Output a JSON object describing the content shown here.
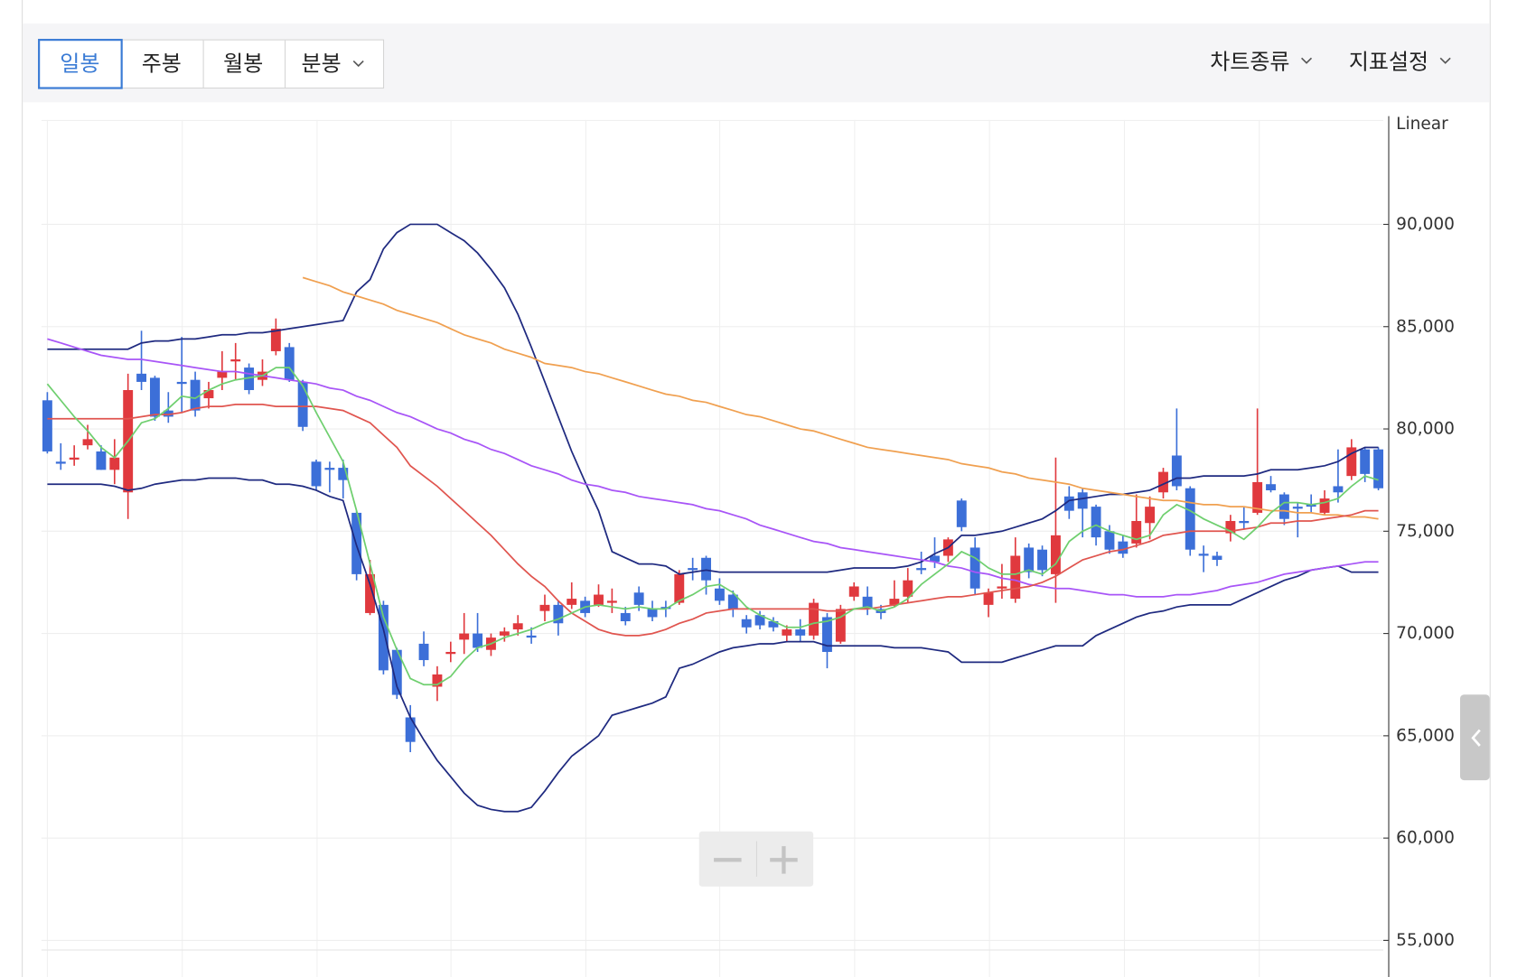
{
  "toolbar": {
    "tabs": [
      "일봉",
      "주봉",
      "월봉",
      "분봉"
    ],
    "menus": [
      "차트종류",
      "지표설정"
    ]
  },
  "chart_data": {
    "type": "candlestick",
    "y_axis_label": "Linear",
    "ylim": [
      54700,
      95100
    ],
    "yticks": [
      {
        "value": 55000,
        "label": "55,000"
      },
      {
        "value": 60000,
        "label": "60,000"
      },
      {
        "value": 65000,
        "label": "65,000"
      },
      {
        "value": 70000,
        "label": "70,000"
      },
      {
        "value": 75000,
        "label": "75,000"
      },
      {
        "value": 80000,
        "label": "80,000"
      },
      {
        "value": 85000,
        "label": "85,000"
      },
      {
        "value": 90000,
        "label": "90,000"
      }
    ],
    "grid": true,
    "up_color": "#e0393e",
    "down_color": "#3c6fd8",
    "open": [
      81400,
      78400,
      78500,
      79200,
      78900,
      78000,
      76900,
      82700,
      82500,
      80900,
      82300,
      82400,
      81500,
      82500,
      83300,
      83000,
      82400,
      83800,
      84000,
      82300,
      78400,
      78100,
      78100,
      75900,
      71000,
      71400,
      69200,
      65900,
      69500,
      67400,
      69000,
      69700,
      70000,
      69200,
      69900,
      70200,
      69900,
      71100,
      71400,
      71400,
      71600,
      71400,
      71500,
      71000,
      72000,
      71200,
      71300,
      71500,
      73200,
      73700,
      72200,
      71900,
      70700,
      70900,
      70600,
      69900,
      70200,
      69900,
      70800,
      69600,
      71800,
      71800,
      71200,
      71400,
      71800,
      73200,
      73800,
      73800,
      76500,
      74200,
      71400,
      72200,
      71700,
      74200,
      74100,
      72900,
      76700,
      76900,
      76200,
      75000,
      74500,
      74400,
      75400,
      76900,
      78700,
      77100,
      73900,
      73800,
      74900,
      75500,
      75900,
      77300,
      76800,
      76200,
      76300,
      75900,
      77200,
      77700,
      79000,
      79000
    ],
    "high": [
      81800,
      79300,
      79200,
      80200,
      79200,
      79500,
      82700,
      84800,
      82600,
      81800,
      84500,
      82800,
      82300,
      83800,
      84200,
      83200,
      83400,
      85400,
      84200,
      82400,
      78500,
      78400,
      78500,
      76000,
      73600,
      71600,
      69300,
      66500,
      70100,
      68400,
      69600,
      71000,
      71000,
      70000,
      70300,
      70900,
      70300,
      71900,
      71600,
      72500,
      71800,
      72400,
      72200,
      71300,
      72300,
      71600,
      71600,
      73100,
      73700,
      73800,
      72700,
      72100,
      70900,
      71100,
      70800,
      70400,
      70700,
      71700,
      71000,
      71400,
      72500,
      72300,
      71400,
      72600,
      73200,
      74000,
      74700,
      74700,
      76600,
      74700,
      72200,
      73400,
      74700,
      74400,
      74300,
      78600,
      77200,
      77100,
      76300,
      75300,
      74800,
      76800,
      76700,
      78100,
      81000,
      77200,
      74300,
      74000,
      75800,
      76200,
      81000,
      77700,
      76900,
      76400,
      76800,
      77000,
      79000,
      79500,
      79100,
      79100
    ],
    "low": [
      78800,
      78000,
      78200,
      79000,
      78000,
      77300,
      75600,
      81900,
      80400,
      80300,
      80800,
      80600,
      81000,
      81900,
      82400,
      81700,
      82100,
      83600,
      82300,
      79900,
      77000,
      76900,
      76600,
      72600,
      70900,
      68000,
      66800,
      64200,
      68400,
      66700,
      68600,
      69000,
      69100,
      68900,
      69600,
      69900,
      69500,
      70600,
      69900,
      71200,
      70800,
      71300,
      71000,
      70400,
      71100,
      70600,
      70800,
      71400,
      72600,
      71900,
      71400,
      70800,
      70000,
      70200,
      70100,
      69600,
      69600,
      69700,
      68300,
      69500,
      71600,
      70900,
      70700,
      71300,
      71500,
      72900,
      73200,
      73500,
      75000,
      71900,
      70800,
      71700,
      71500,
      72700,
      72800,
      71500,
      75600,
      74700,
      74300,
      73900,
      73700,
      74200,
      74600,
      76600,
      77000,
      73800,
      73000,
      73300,
      74500,
      75100,
      75800,
      76900,
      75300,
      74700,
      75900,
      75800,
      76400,
      77500,
      77400,
      77000
    ],
    "close": [
      78900,
      78300,
      78600,
      79500,
      78000,
      78600,
      81900,
      82300,
      80600,
      80600,
      82200,
      80900,
      81900,
      82800,
      83400,
      81900,
      82800,
      84900,
      82400,
      80100,
      77200,
      78000,
      77500,
      72900,
      72900,
      68200,
      67000,
      64700,
      68700,
      68000,
      69100,
      70000,
      69300,
      69800,
      70100,
      70500,
      69800,
      71400,
      70500,
      71700,
      71000,
      71900,
      71600,
      70600,
      71400,
      70800,
      71200,
      72900,
      73100,
      72600,
      71600,
      71200,
      70300,
      70400,
      70300,
      70200,
      69900,
      71500,
      69100,
      71200,
      72300,
      71200,
      71000,
      71700,
      72600,
      73100,
      73500,
      74600,
      75200,
      72200,
      72000,
      72300,
      73800,
      73000,
      73100,
      74800,
      76000,
      76100,
      74700,
      74100,
      73900,
      75500,
      76200,
      77900,
      77200,
      74100,
      73800,
      73600,
      75500,
      75400,
      77400,
      77000,
      75600,
      76100,
      76200,
      76600,
      76900,
      79100,
      77800,
      77100
    ],
    "lines": [
      {
        "color": "#1f2a80",
        "values": [
          83900,
          83900,
          83900,
          83900,
          83900,
          83900,
          83900,
          84200,
          84300,
          84300,
          84400,
          84400,
          84500,
          84600,
          84600,
          84700,
          84700,
          84800,
          84900,
          85000,
          85100,
          85200,
          85300,
          86700,
          87300,
          88800,
          89600,
          90000,
          90000,
          90000,
          89600,
          89200,
          88600,
          87800,
          86900,
          85600,
          84000,
          82300,
          80600,
          78900,
          77400,
          76000,
          74000,
          73700,
          73400,
          73400,
          73300,
          72900,
          73000,
          73100,
          73000,
          73000,
          73000,
          73000,
          73000,
          73000,
          73000,
          73000,
          73000,
          73100,
          73200,
          73200,
          73200,
          73200,
          73300,
          73500,
          73900,
          74200,
          74800,
          74800,
          74900,
          75000,
          75200,
          75400,
          75600,
          76000,
          76500,
          76600,
          76700,
          76800,
          76800,
          76900,
          77000,
          77300,
          77600,
          77600,
          77700,
          77700,
          77700,
          77700,
          77800,
          78000,
          78000,
          78000,
          78100,
          78200,
          78400,
          78800,
          79100,
          79100
        ]
      },
      {
        "color": "#1f2a80",
        "values": [
          77300,
          77300,
          77300,
          77300,
          77300,
          77200,
          77000,
          77100,
          77300,
          77400,
          77500,
          77500,
          77600,
          77600,
          77600,
          77500,
          77500,
          77300,
          77300,
          77200,
          77000,
          76700,
          76500,
          74300,
          72400,
          70200,
          67400,
          65900,
          64800,
          63800,
          63000,
          62200,
          61600,
          61400,
          61300,
          61300,
          61500,
          62300,
          63200,
          64000,
          64500,
          65000,
          66000,
          66200,
          66400,
          66600,
          66900,
          68300,
          68500,
          68800,
          69100,
          69300,
          69400,
          69500,
          69500,
          69600,
          69600,
          69600,
          69400,
          69400,
          69400,
          69400,
          69400,
          69300,
          69300,
          69300,
          69200,
          69100,
          68600,
          68600,
          68600,
          68600,
          68800,
          69000,
          69200,
          69400,
          69400,
          69400,
          69900,
          70200,
          70500,
          70800,
          71000,
          71100,
          71300,
          71400,
          71400,
          71400,
          71400,
          71700,
          72000,
          72300,
          72600,
          72800,
          73100,
          73200,
          73300,
          73000,
          73000,
          73000
        ]
      },
      {
        "color": "#f0a050",
        "values": [
          null,
          null,
          null,
          null,
          null,
          null,
          null,
          null,
          null,
          null,
          null,
          null,
          null,
          null,
          null,
          null,
          null,
          null,
          null,
          87400,
          87200,
          87000,
          86700,
          86500,
          86300,
          86100,
          85800,
          85600,
          85400,
          85200,
          84900,
          84600,
          84400,
          84200,
          83900,
          83700,
          83500,
          83200,
          83100,
          83000,
          82800,
          82700,
          82500,
          82300,
          82100,
          81900,
          81700,
          81600,
          81400,
          81300,
          81100,
          80900,
          80700,
          80600,
          80400,
          80200,
          80000,
          79900,
          79700,
          79500,
          79300,
          79100,
          79000,
          78900,
          78800,
          78700,
          78600,
          78500,
          78300,
          78200,
          78100,
          77900,
          77800,
          77600,
          77500,
          77400,
          77300,
          77100,
          77000,
          76900,
          76800,
          76700,
          76600,
          76500,
          76500,
          76400,
          76300,
          76300,
          76200,
          76200,
          76100,
          76000,
          76000,
          75900,
          75900,
          75800,
          75800,
          75700,
          75700,
          75600
        ]
      },
      {
        "color": "#a855f7",
        "values": [
          84400,
          84200,
          84000,
          83800,
          83600,
          83500,
          83400,
          83400,
          83300,
          83200,
          83100,
          83000,
          82900,
          82800,
          82800,
          82700,
          82600,
          82500,
          82400,
          82300,
          82200,
          82000,
          81900,
          81600,
          81400,
          81100,
          80800,
          80600,
          80300,
          80000,
          79800,
          79500,
          79300,
          79000,
          78800,
          78500,
          78200,
          78000,
          77800,
          77500,
          77300,
          77200,
          77000,
          76900,
          76700,
          76600,
          76500,
          76400,
          76300,
          76100,
          76000,
          75800,
          75600,
          75300,
          75100,
          74900,
          74700,
          74500,
          74400,
          74200,
          74100,
          74000,
          73900,
          73800,
          73700,
          73600,
          73500,
          73300,
          73200,
          73000,
          72900,
          72700,
          72600,
          72400,
          72300,
          72200,
          72200,
          72100,
          72000,
          71900,
          71900,
          71800,
          71800,
          71800,
          71900,
          71900,
          72000,
          72100,
          72300,
          72400,
          72500,
          72700,
          72900,
          73000,
          73100,
          73200,
          73300,
          73400,
          73500,
          73500
        ]
      },
      {
        "color": "#e0554f",
        "values": [
          80500,
          80500,
          80500,
          80500,
          80500,
          80500,
          80500,
          80600,
          80700,
          80700,
          80800,
          81000,
          81100,
          81100,
          81200,
          81200,
          81200,
          81100,
          81100,
          81100,
          81100,
          81000,
          80900,
          80600,
          80300,
          79700,
          79100,
          78200,
          77700,
          77200,
          76600,
          76000,
          75400,
          74800,
          74100,
          73400,
          72800,
          72300,
          71600,
          71000,
          70600,
          70200,
          70000,
          69900,
          69900,
          70000,
          70200,
          70500,
          70700,
          71000,
          71100,
          71200,
          71200,
          71200,
          71200,
          71200,
          71200,
          71200,
          71100,
          71100,
          71200,
          71200,
          71300,
          71400,
          71500,
          71600,
          71700,
          71800,
          71800,
          71900,
          72000,
          72100,
          72200,
          72300,
          72500,
          72800,
          73200,
          73600,
          73800,
          74000,
          74100,
          74300,
          74500,
          74800,
          74900,
          75000,
          75000,
          75000,
          75000,
          75100,
          75200,
          75400,
          75400,
          75500,
          75500,
          75600,
          75700,
          75800,
          76000,
          76000
        ]
      },
      {
        "color": "#6fcf6f",
        "values": [
          82200,
          81400,
          80600,
          79900,
          79100,
          78600,
          79400,
          80300,
          80500,
          81000,
          81600,
          81500,
          81900,
          82200,
          82400,
          82500,
          82600,
          83000,
          83000,
          82100,
          80800,
          79600,
          78400,
          76000,
          73400,
          70800,
          69200,
          67800,
          67500,
          67500,
          67900,
          68700,
          69300,
          69500,
          69800,
          70000,
          70200,
          70500,
          70700,
          71000,
          71300,
          71400,
          71300,
          71200,
          71300,
          71200,
          71200,
          71600,
          71900,
          72300,
          72400,
          72000,
          71300,
          70900,
          70600,
          70300,
          70300,
          70500,
          70600,
          70800,
          71200,
          71300,
          71100,
          71300,
          71700,
          72400,
          72900,
          73400,
          74000,
          73700,
          73200,
          72900,
          72900,
          73100,
          72900,
          73400,
          74500,
          75000,
          75300,
          75000,
          74800,
          74600,
          74800,
          75800,
          76300,
          76000,
          75600,
          75300,
          75000,
          74600,
          75200,
          75900,
          76400,
          76400,
          76300,
          76400,
          76600,
          77200,
          77700,
          77500
        ]
      }
    ]
  }
}
